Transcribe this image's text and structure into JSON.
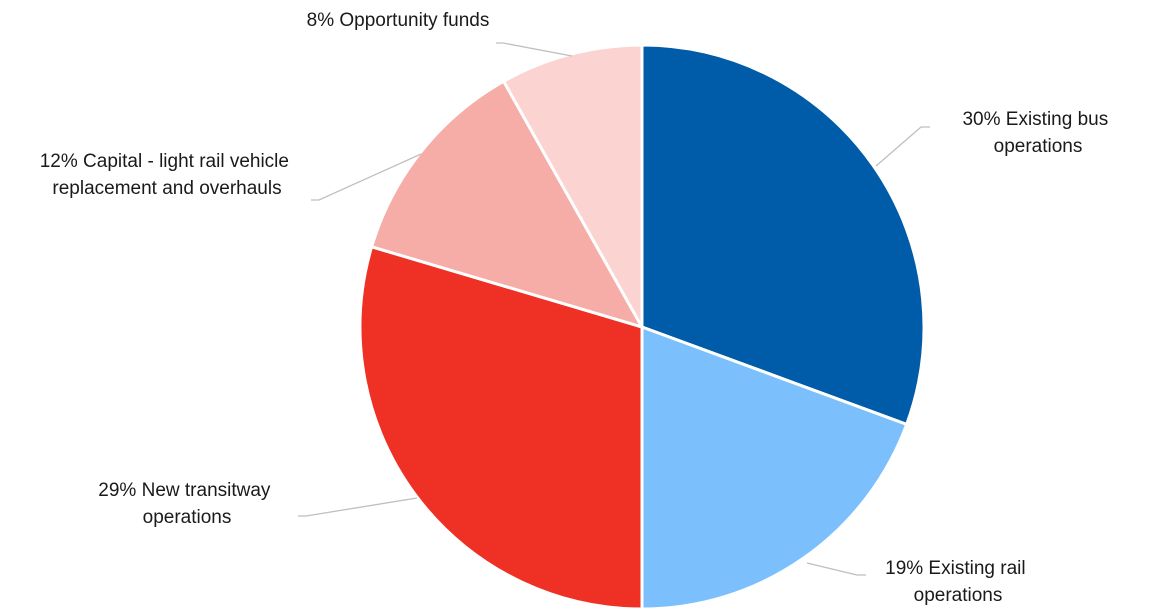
{
  "chart_data": {
    "type": "pie",
    "start_angle_deg": 0,
    "direction": "clockwise",
    "slices": [
      {
        "label_lines": [
          "30% Existing bus",
          "operations"
        ],
        "value": 30,
        "color": "#005ba8"
      },
      {
        "label_lines": [
          "19% Existing rail",
          "operations"
        ],
        "value": 19,
        "color": "#7bc0fc"
      },
      {
        "label_lines": [
          "29% New transitway",
          "operations"
        ],
        "value": 29,
        "color": "#ee3124"
      },
      {
        "label_lines": [
          "12% Capital - light rail vehicle",
          "replacement and overhauls"
        ],
        "value": 12,
        "color": "#f6aca7"
      },
      {
        "label_lines": [
          "8% Opportunity funds"
        ],
        "value": 8,
        "color": "#fbd4d1"
      }
    ]
  }
}
